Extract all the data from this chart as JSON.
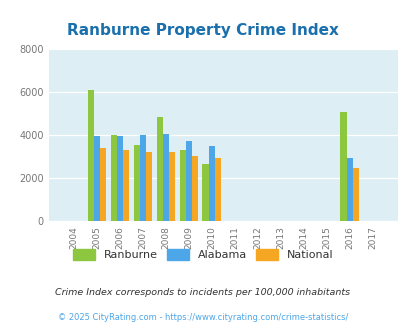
{
  "title": "Ranburne Property Crime Index",
  "years": [
    2004,
    2005,
    2006,
    2007,
    2008,
    2009,
    2010,
    2011,
    2012,
    2013,
    2014,
    2015,
    2016,
    2017
  ],
  "ranburne": [
    0,
    6100,
    4000,
    3550,
    4850,
    3300,
    2650,
    0,
    0,
    0,
    0,
    0,
    5100,
    0
  ],
  "alabama": [
    0,
    3950,
    3950,
    4000,
    4050,
    3750,
    3500,
    0,
    0,
    0,
    0,
    0,
    2950,
    0
  ],
  "national": [
    0,
    3400,
    3300,
    3200,
    3200,
    3050,
    2950,
    0,
    0,
    0,
    0,
    0,
    2480,
    0
  ],
  "color_ranburne": "#8dc63f",
  "color_alabama": "#4da6e8",
  "color_national": "#f5a623",
  "bg_color": "#ddeef4",
  "ylim": [
    0,
    8000
  ],
  "yticks": [
    0,
    2000,
    4000,
    6000,
    8000
  ],
  "legend_labels": [
    "Ranburne",
    "Alabama",
    "National"
  ],
  "footnote1": "Crime Index corresponds to incidents per 100,000 inhabitants",
  "footnote2": "© 2025 CityRating.com - https://www.cityrating.com/crime-statistics/",
  "title_color": "#1a6fad",
  "footnote1_color": "#333333",
  "footnote2_color": "#4da6e8"
}
